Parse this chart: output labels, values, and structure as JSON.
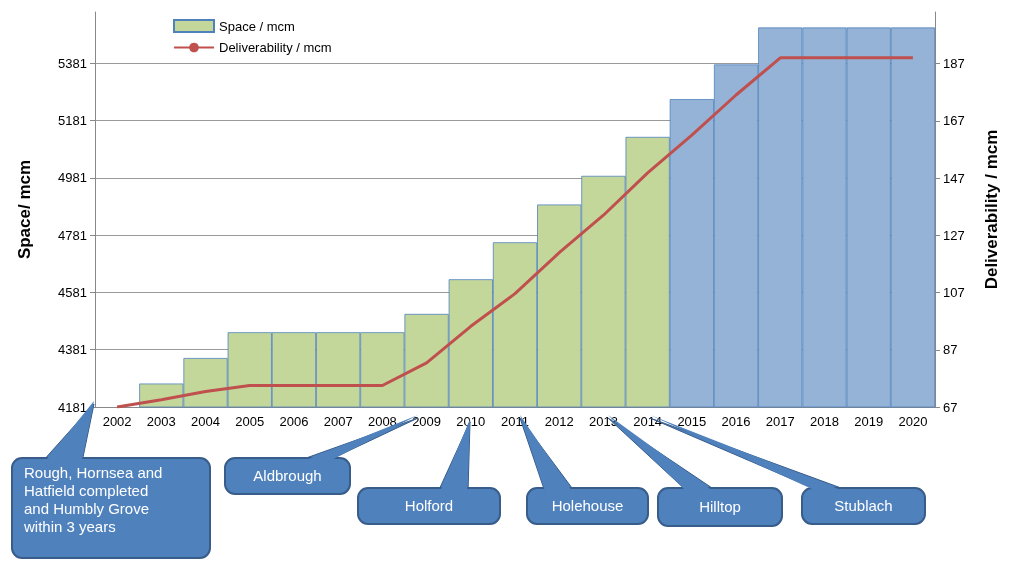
{
  "chart_data": {
    "type": "bar",
    "categories": [
      "2002",
      "2003",
      "2004",
      "2005",
      "2006",
      "2007",
      "2008",
      "2009",
      "2010",
      "2011",
      "2012",
      "2013",
      "2014",
      "2015",
      "2016",
      "2017",
      "2018",
      "2019",
      "2020"
    ],
    "series": [
      {
        "name": "Space / mcm",
        "color": "#c4d79b",
        "colors": [
          "#c4d79b",
          "#c4d79b",
          "#c4d79b",
          "#c4d79b",
          "#c4d79b",
          "#c4d79b",
          "#c4d79b",
          "#c4d79b",
          "#c4d79b",
          "#c4d79b",
          "#c4d79b",
          "#c4d79b",
          "#c4d79b",
          "#95b3d7",
          "#95b3d7",
          "#95b3d7",
          "#95b3d7",
          "#95b3d7",
          "#95b3d7"
        ],
        "values": [
          4181,
          4263,
          4352,
          4442,
          4442,
          4442,
          4442,
          4506,
          4627,
          4756,
          4888,
          4988,
          5124,
          5256,
          5377,
          5506,
          5506,
          5506,
          5506
        ]
      },
      {
        "name": "Deliverability / mcm",
        "type": "line",
        "axis": "y2",
        "color": "#c0504d",
        "values": [
          67,
          69.5,
          72.4,
          74.5,
          74.5,
          74.5,
          74.5,
          82.4,
          95.2,
          106.6,
          120.9,
          134,
          148.8,
          162,
          176,
          189,
          189,
          189,
          189
        ]
      }
    ],
    "ylabel": "Space/ mcm",
    "y2label": "Deliverability / mcm",
    "ylim": [
      4181,
      5560
    ],
    "yticks": [
      4181,
      4381,
      4581,
      4781,
      4981,
      5181,
      5381
    ],
    "y2lim": [
      67,
      205
    ],
    "y2ticks": [
      67,
      87,
      107,
      127,
      147,
      167,
      187
    ],
    "grid": "y",
    "legend": "top left",
    "marker": "none",
    "line_style": "solid",
    "annotations": [
      "Rough,  Hornsea and Hatfield completed  and Humbly Grove within 3 years",
      "Aldbrough",
      "Holford",
      "Holehouse",
      "Hilltop",
      "Stublach"
    ]
  }
}
